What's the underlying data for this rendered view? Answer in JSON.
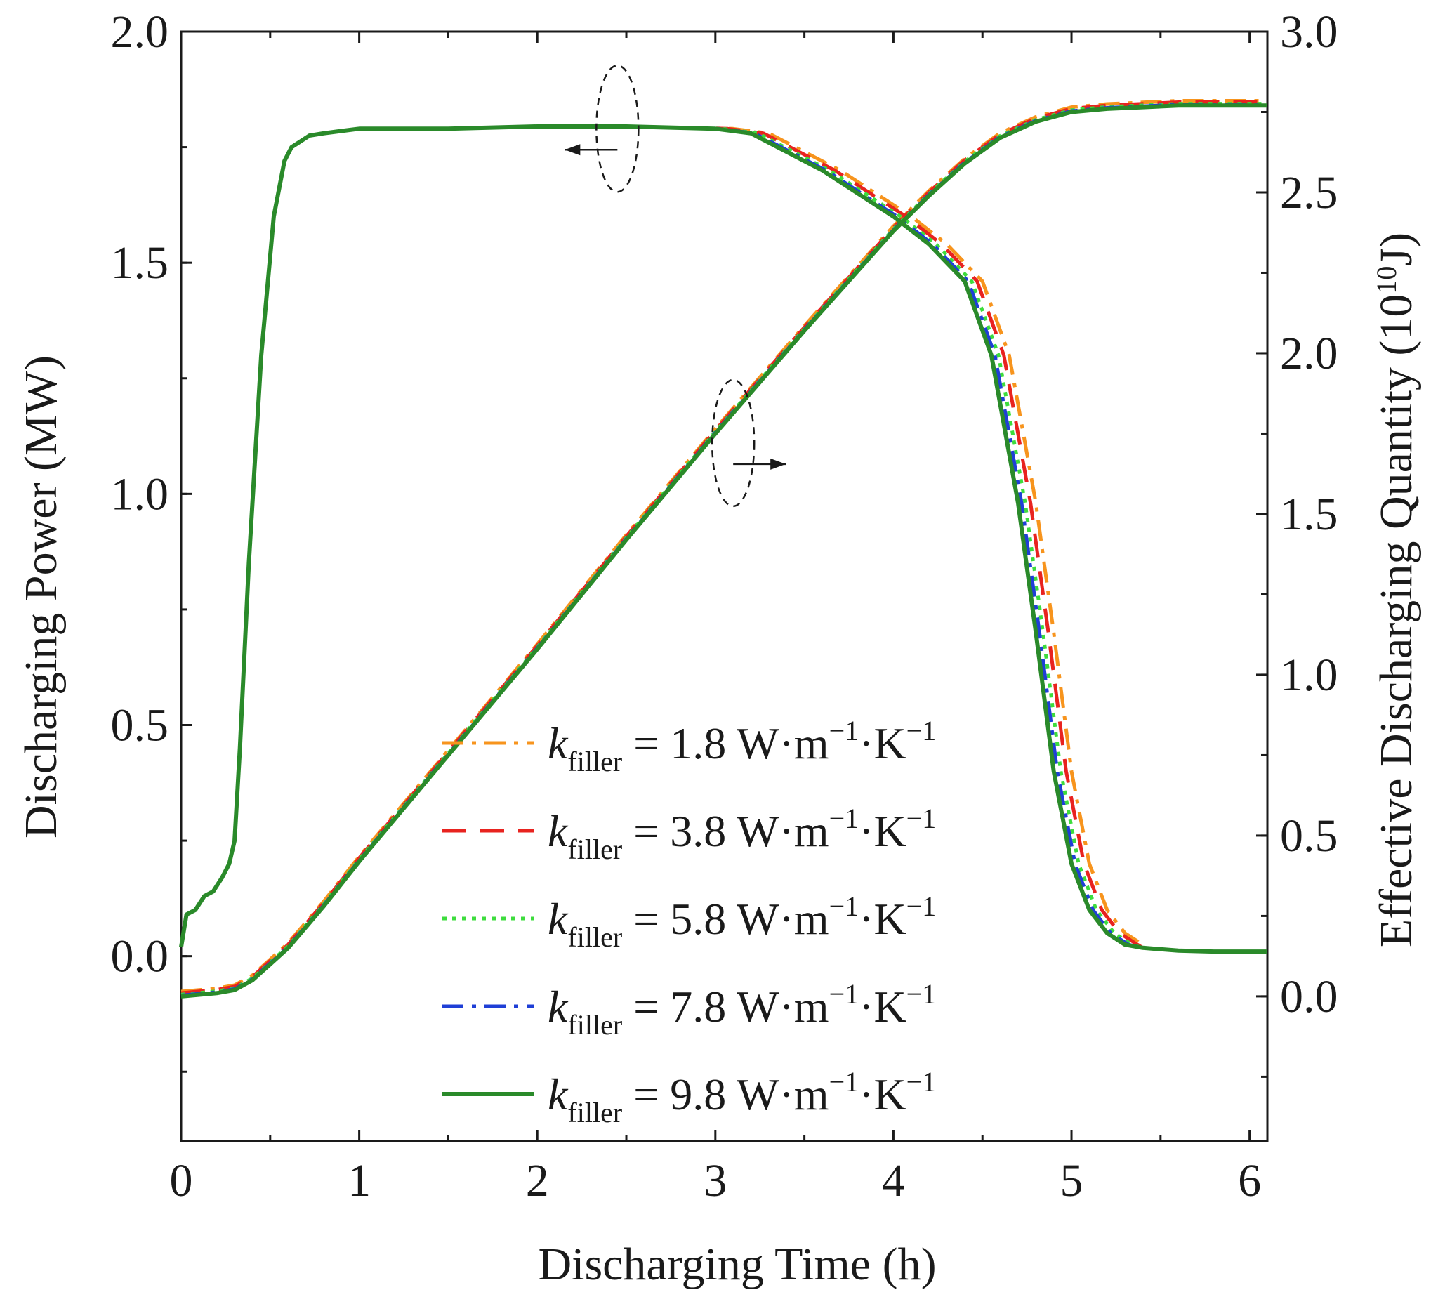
{
  "chart_data": {
    "type": "line",
    "xlabel": "Discharging Time (h)",
    "ylabel": "Discharging Power (MW)",
    "y2label_prefix": "Effective Discharging Quantity (10",
    "y2label_exp": "10",
    "y2label_suffix": "J)",
    "xlim": [
      0,
      6.1
    ],
    "ylim": [
      -0.4,
      2.0
    ],
    "y2lim": [
      -0.45,
      3.0
    ],
    "x_ticks": [
      "0",
      "1",
      "2",
      "3",
      "4",
      "5",
      "6"
    ],
    "y_ticks": [
      "0.0",
      "0.5",
      "1.0",
      "1.5",
      "2.0"
    ],
    "y2_ticks": [
      "0.0",
      "0.5",
      "1.0",
      "1.5",
      "2.0",
      "2.5",
      "3.0"
    ],
    "legend": {
      "symbol": "k",
      "subscript": "filler",
      "unit_base_1": "W·m",
      "unit_exp_1": "−1",
      "unit_base_2": "·K",
      "unit_exp_2": "−1",
      "location": "lower-center"
    },
    "series": [
      {
        "name": "k_filler = 1.8 W·m−1·K−1",
        "value_label": "1.8",
        "color": "#f7941d",
        "dash": "dashdot",
        "power_shift": 0.1
      },
      {
        "name": "k_filler = 3.8 W·m−1·K−1",
        "value_label": "3.8",
        "color": "#e8231f",
        "dash": "dashed",
        "power_shift": 0.07
      },
      {
        "name": "k_filler = 5.8 W·m−1·K−1",
        "value_label": "5.8",
        "color": "#3ddc3d",
        "dash": "dotted",
        "power_shift": 0.04
      },
      {
        "name": "k_filler = 7.8 W·m−1·K−1",
        "value_label": "7.8",
        "color": "#1f3fd6",
        "dash": "dashdot",
        "power_shift": 0.02
      },
      {
        "name": "k_filler = 9.8 W·m−1·K−1",
        "value_label": "9.8",
        "color": "#2a8a2a",
        "dash": "solid",
        "power_shift": 0.0
      }
    ],
    "power_curve": {
      "axis": "left",
      "x": [
        0,
        0.03,
        0.08,
        0.13,
        0.18,
        0.23,
        0.27,
        0.3,
        0.33,
        0.38,
        0.45,
        0.52,
        0.58,
        0.62,
        0.66,
        0.72,
        0.8,
        0.9,
        1.0,
        1.5,
        2.0,
        2.5,
        3.0,
        3.2,
        3.4,
        3.6,
        3.8,
        4.0,
        4.2,
        4.4,
        4.55,
        4.7,
        4.8,
        4.9,
        5.0,
        5.1,
        5.2,
        5.3,
        5.4,
        5.6,
        5.8,
        6.0,
        6.1
      ],
      "y": [
        0.02,
        0.09,
        0.1,
        0.13,
        0.14,
        0.17,
        0.2,
        0.25,
        0.45,
        0.85,
        1.3,
        1.6,
        1.72,
        1.75,
        1.76,
        1.775,
        1.78,
        1.785,
        1.79,
        1.79,
        1.795,
        1.795,
        1.79,
        1.78,
        1.74,
        1.7,
        1.65,
        1.6,
        1.54,
        1.46,
        1.3,
        0.98,
        0.7,
        0.4,
        0.2,
        0.1,
        0.05,
        0.025,
        0.018,
        0.012,
        0.01,
        0.01,
        0.01
      ]
    },
    "energy_curve": {
      "axis": "right",
      "x": [
        0,
        0.2,
        0.3,
        0.4,
        0.5,
        0.6,
        0.8,
        1.0,
        1.5,
        2.0,
        2.5,
        3.0,
        3.5,
        4.0,
        4.2,
        4.4,
        4.6,
        4.8,
        5.0,
        5.2,
        5.4,
        5.6,
        5.8,
        6.0,
        6.1
      ],
      "y": [
        0.0,
        0.01,
        0.02,
        0.05,
        0.1,
        0.15,
        0.28,
        0.42,
        0.75,
        1.08,
        1.42,
        1.75,
        2.07,
        2.38,
        2.49,
        2.59,
        2.67,
        2.72,
        2.75,
        2.76,
        2.765,
        2.77,
        2.77,
        2.77,
        2.77
      ]
    },
    "annotations": [
      {
        "type": "dashed-ellipse-arrow",
        "points_to": "left",
        "near_x": 2.45,
        "near_y_left": 1.79
      },
      {
        "type": "dashed-ellipse-arrow",
        "points_to": "right",
        "near_x": 3.1,
        "near_y_left": 1.11
      }
    ]
  }
}
